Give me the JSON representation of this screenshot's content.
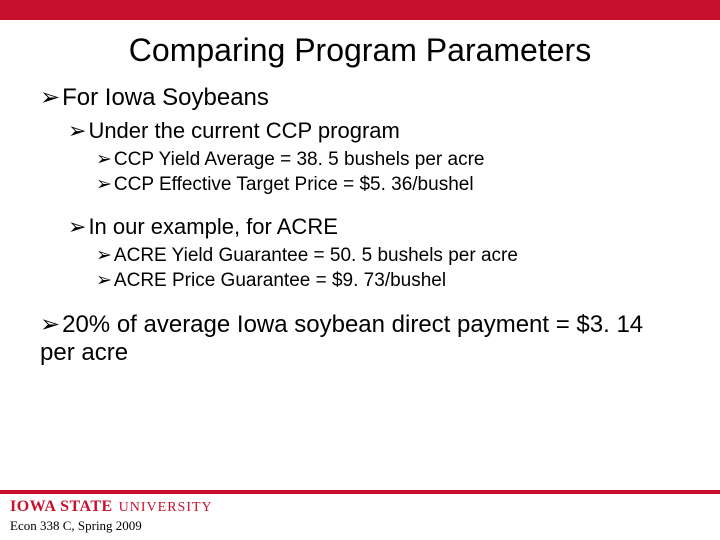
{
  "colors": {
    "brand_red": "#c8102e",
    "text": "#000000",
    "background": "#ffffff"
  },
  "title": "Comparing Program Parameters",
  "bullet_glyph": "➢",
  "level1_a": "For Iowa Soybeans",
  "level2_a": "Under the current CCP program",
  "level3_a1": "CCP Yield Average = 38. 5 bushels per acre",
  "level3_a2": "CCP Effective Target Price = $5. 36/bushel",
  "level2_b": "In our example, for ACRE",
  "level3_b1": "ACRE Yield Guarantee = 50. 5 bushels per acre",
  "level3_b2": "ACRE Price Guarantee = $9. 73/bushel",
  "level1_b": "20% of average Iowa soybean direct payment = $3. 14 per acre",
  "footer": {
    "logo_iowa": "IOWA STATE",
    "logo_univ": "UNIVERSITY",
    "course": "Econ 338 C, Spring 2009"
  }
}
